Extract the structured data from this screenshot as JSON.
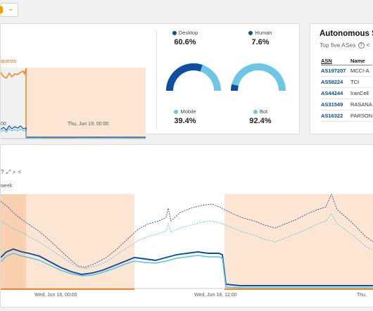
{
  "top_control": {
    "icon": "chevron-down-icon"
  },
  "requests_chart": {
    "label_partial": "quests",
    "x_ticks": [
      "00",
      "Thu, Jun 19, 00:00"
    ]
  },
  "metrics": [
    {
      "label": "Desktop",
      "value": "60.6%",
      "color": "#0b4ea2"
    },
    {
      "label": "Human",
      "value": "7.6%",
      "color": "#0b4ea2"
    },
    {
      "label": "Mobile",
      "value": "39.4%",
      "color": "#6ec6e6"
    },
    {
      "label": "Bot",
      "value": "92.4%",
      "color": "#6ec6e6"
    }
  ],
  "gauges": [
    {
      "name": "desktop-mobile",
      "primary": 0.606,
      "primary_color": "#0b4ea2",
      "secondary_color": "#6ec6e6"
    },
    {
      "name": "human-bot",
      "primary": 0.076,
      "primary_color": "#0b4ea2",
      "secondary_color": "#6ec6e6"
    }
  ],
  "autonomous": {
    "title": "Autonomous S",
    "subtitle": "Top five ASes",
    "col_asn": "ASN",
    "col_name": "Name",
    "rows": [
      {
        "asn": "AS197207",
        "name": "MCCI-A"
      },
      {
        "asn": "AS58224",
        "name": "TCI"
      },
      {
        "asn": "AS44244",
        "name": "IranCell"
      },
      {
        "asn": "AS31549",
        "name": "RASANA"
      },
      {
        "asn": "AS16322",
        "name": "PARSON"
      }
    ]
  },
  "traffic_chart": {
    "week_label": "week",
    "x_ticks": [
      "Wed, Jun 18, 00:00",
      "Wed, Jun 18, 12:00",
      "Thu,"
    ]
  }
}
